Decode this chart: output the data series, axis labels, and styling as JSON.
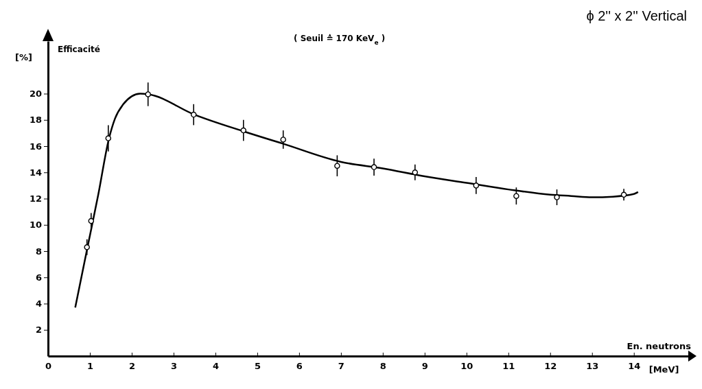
{
  "chart_data": {
    "type": "scatter",
    "title": "ϕ 2'' x 2'' Vertical",
    "subtitle": "( Seuil ≙ 170 KeV$_{e}$ )",
    "xlabel": "En. neutrons",
    "ylabel": "Efficacité",
    "annotations": [
      "[%]",
      "[MeV]"
    ],
    "xlim": [
      0,
      15.3
    ],
    "ylim": [
      0,
      24
    ],
    "xticks": [
      0,
      1,
      2,
      3,
      4,
      5,
      6,
      7,
      8,
      9,
      10,
      11,
      12,
      13,
      14
    ],
    "yticks": [
      2,
      4,
      6,
      8,
      10,
      12,
      14,
      16,
      18,
      20
    ],
    "grid": false,
    "series": [
      {
        "type": "line",
        "color": "#000000",
        "marker": "none",
        "line_style": "solid",
        "x": [
          0.65,
          0.95,
          1.2,
          1.45,
          1.6,
          1.8,
          2.0,
          2.2,
          2.4,
          3.5,
          4.7,
          5.6,
          7.0,
          8.0,
          9.0,
          10.0,
          11.0,
          12.0,
          12.5,
          13.0,
          13.5,
          14.0,
          14.1
        ],
        "values": [
          3.7,
          8.4,
          12.3,
          16.5,
          18.1,
          19.2,
          19.8,
          20.0,
          19.95,
          18.4,
          17.1,
          16.2,
          14.8,
          14.3,
          13.7,
          13.2,
          12.7,
          12.3,
          12.2,
          12.1,
          12.15,
          12.35,
          12.5
        ]
      },
      {
        "color": "#000000",
        "marker": "circle",
        "x": [
          0.93,
          1.03,
          1.44,
          2.39,
          3.48,
          4.67,
          5.62,
          6.91,
          7.79,
          8.77,
          10.23,
          11.19,
          12.16,
          13.76
        ],
        "values": [
          8.3,
          10.3,
          16.6,
          19.95,
          18.4,
          17.2,
          16.5,
          14.5,
          14.4,
          14.0,
          13.0,
          12.2,
          12.1,
          12.3
        ],
        "errors": [
          0.6,
          0.6,
          1.0,
          0.9,
          0.8,
          0.8,
          0.7,
          0.8,
          0.65,
          0.6,
          0.65,
          0.65,
          0.6,
          0.45
        ]
      }
    ]
  }
}
